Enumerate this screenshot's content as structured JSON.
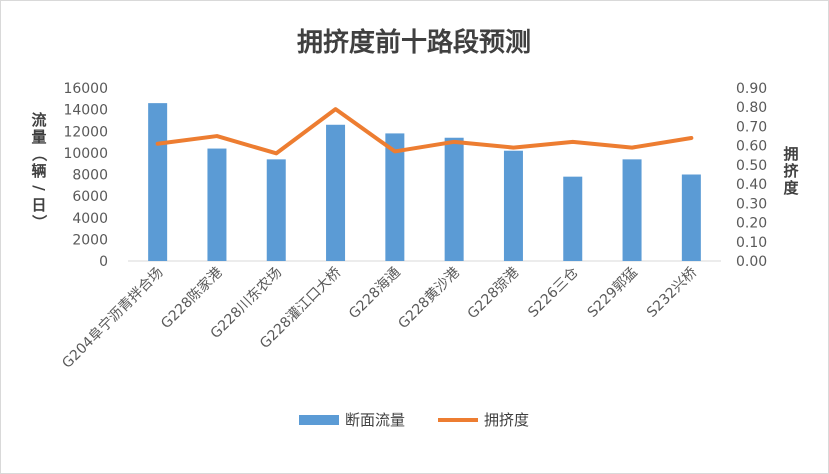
{
  "chart_data": {
    "type": "bar+line",
    "title": "拥挤度前十路段预测",
    "categories": [
      "G204阜宁沥青拌合场",
      "G228陈家港",
      "G228川东农场",
      "G228灌江口大桥",
      "G228海通",
      "G228黄沙港",
      "G228弶港",
      "S226三仓",
      "S229郭猛",
      "S232兴桥"
    ],
    "series": [
      {
        "name": "断面流量",
        "type": "bar",
        "axis": "left",
        "color": "#5b9bd5",
        "values": [
          14600,
          10400,
          9400,
          12600,
          11800,
          11400,
          10200,
          7800,
          9400,
          8000
        ]
      },
      {
        "name": "拥挤度",
        "type": "line",
        "axis": "right",
        "color": "#ed7d31",
        "values": [
          0.61,
          0.65,
          0.56,
          0.79,
          0.57,
          0.62,
          0.59,
          0.62,
          0.59,
          0.64
        ]
      }
    ],
    "ylabel_left": "流量（辆/日）",
    "ylabel_right": "拥挤度",
    "ylim_left": [
      0,
      16000
    ],
    "yticks_left": [
      "16000",
      "14000",
      "12000",
      "10000",
      "8000",
      "6000",
      "4000",
      "2000",
      "0"
    ],
    "ylim_right": [
      0,
      0.9
    ],
    "yticks_right": [
      "0.90",
      "0.80",
      "0.70",
      "0.60",
      "0.50",
      "0.40",
      "0.30",
      "0.20",
      "0.10",
      "0.00"
    ],
    "grid": false,
    "legend": "bottom"
  }
}
